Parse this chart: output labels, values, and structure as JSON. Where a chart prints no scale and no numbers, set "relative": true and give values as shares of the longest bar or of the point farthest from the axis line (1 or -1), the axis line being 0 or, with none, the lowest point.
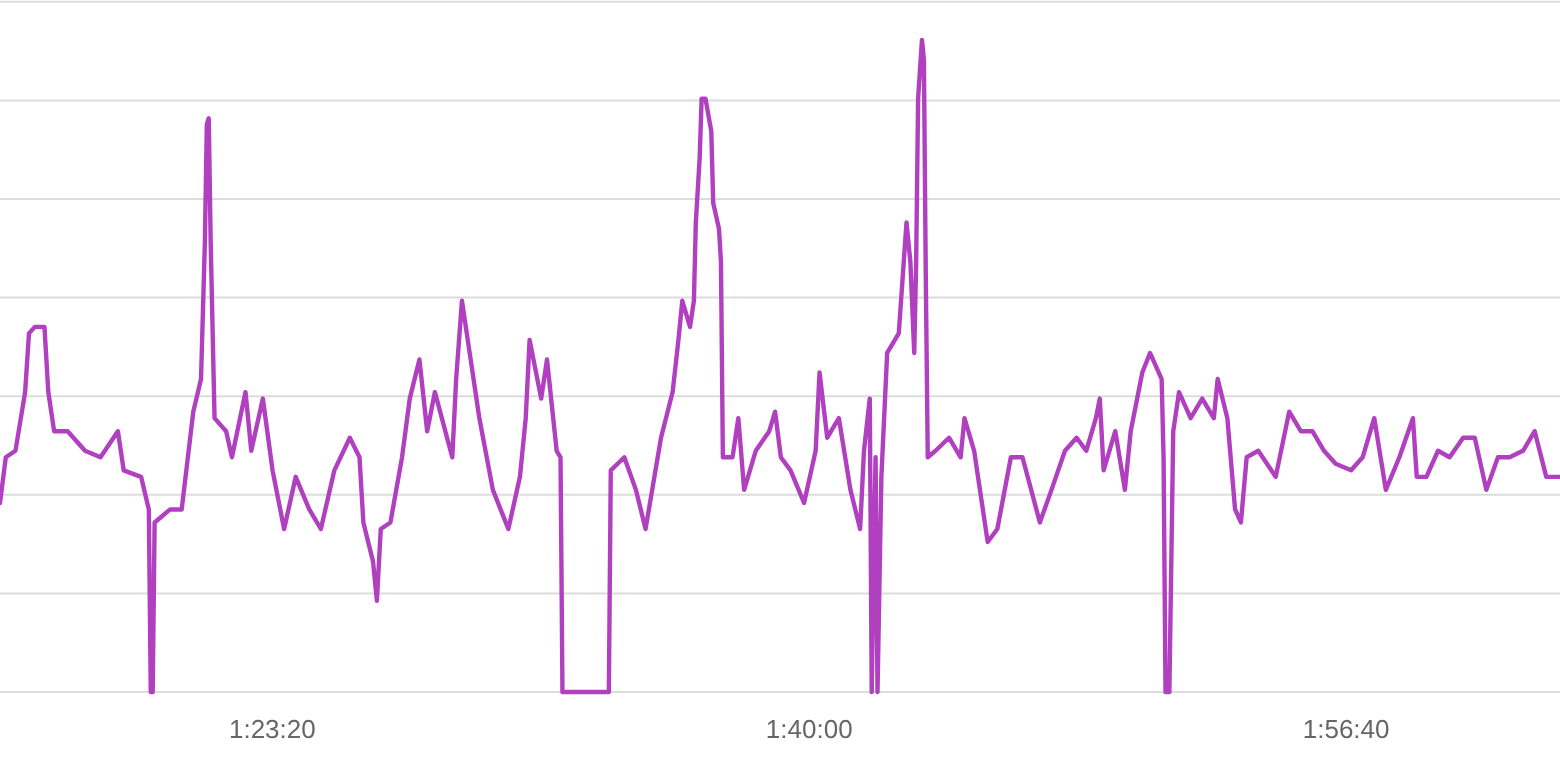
{
  "chart_data": {
    "type": "line",
    "relative": true,
    "grid": "y",
    "tick_labels": "x",
    "xlim": [
      1.248,
      2.0551
    ],
    "xticks": [
      {
        "value": 1.388889,
        "label": "1:23:20"
      },
      {
        "value": 1.666667,
        "label": "1:40:00"
      },
      {
        "value": 1.944444,
        "label": "1:56:40"
      }
    ],
    "series": [
      {
        "color": "#b040c0",
        "x": [
          1.248,
          1.251,
          1.256,
          1.261,
          1.263,
          1.266,
          1.271,
          1.273,
          1.276,
          1.283,
          1.292,
          1.3,
          1.309,
          1.312,
          1.321,
          1.325,
          1.326,
          1.327,
          1.328,
          1.336,
          1.342,
          1.348,
          1.352,
          1.354,
          1.355,
          1.356,
          1.357,
          1.359,
          1.365,
          1.368,
          1.375,
          1.378,
          1.384,
          1.389,
          1.395,
          1.401,
          1.408,
          1.414,
          1.421,
          1.429,
          1.434,
          1.436,
          1.441,
          1.443,
          1.445,
          1.45,
          1.456,
          1.46,
          1.465,
          1.469,
          1.473,
          1.482,
          1.484,
          1.487,
          1.491,
          1.496,
          1.503,
          1.511,
          1.517,
          1.52,
          1.522,
          1.528,
          1.531,
          1.536,
          1.538,
          1.539,
          1.563,
          1.564,
          1.571,
          1.577,
          1.582,
          1.59,
          1.596,
          1.599,
          1.601,
          1.605,
          1.607,
          1.608,
          1.61,
          1.611,
          1.613,
          1.616,
          1.617,
          1.62,
          1.621,
          1.622,
          1.627,
          1.63,
          1.633,
          1.639,
          1.646,
          1.649,
          1.652,
          1.657,
          1.664,
          1.67,
          1.672,
          1.676,
          1.682,
          1.688,
          1.693,
          1.695,
          1.698,
          1.699,
          1.7,
          1.701,
          1.702,
          1.704,
          1.707,
          1.713,
          1.717,
          1.719,
          1.721,
          1.722,
          1.723,
          1.725,
          1.726,
          1.727,
          1.728,
          1.732,
          1.739,
          1.745,
          1.747,
          1.752,
          1.759,
          1.764,
          1.771,
          1.777,
          1.786,
          1.792,
          1.799,
          1.805,
          1.81,
          1.815,
          1.817,
          1.819,
          1.825,
          1.83,
          1.833,
          1.839,
          1.843,
          1.849,
          1.85,
          1.851,
          1.853,
          1.855,
          1.858,
          1.864,
          1.87,
          1.876,
          1.878,
          1.883,
          1.887,
          1.89,
          1.893,
          1.899,
          1.908,
          1.915,
          1.921,
          1.927,
          1.933,
          1.939,
          1.947,
          1.953,
          1.959,
          1.965,
          1.972,
          1.979,
          1.981,
          1.986,
          1.992,
          1.998,
          2.005,
          2.011,
          2.017,
          2.023,
          2.029,
          2.036,
          2.042,
          2.048,
          2.055
        ],
        "values": [
          0.29,
          0.36,
          0.37,
          0.46,
          0.55,
          0.56,
          0.56,
          0.46,
          0.4,
          0.4,
          0.37,
          0.36,
          0.4,
          0.34,
          0.33,
          0.28,
          0,
          0,
          0.26,
          0.28,
          0.28,
          0.43,
          0.48,
          0.69,
          0.87,
          0.88,
          0.69,
          0.42,
          0.4,
          0.36,
          0.46,
          0.37,
          0.45,
          0.34,
          0.25,
          0.33,
          0.28,
          0.25,
          0.34,
          0.39,
          0.36,
          0.26,
          0.2,
          0.14,
          0.25,
          0.26,
          0.36,
          0.45,
          0.51,
          0.4,
          0.46,
          0.36,
          0.48,
          0.6,
          0.52,
          0.42,
          0.31,
          0.25,
          0.33,
          0.42,
          0.54,
          0.45,
          0.51,
          0.37,
          0.36,
          0,
          0,
          0.34,
          0.36,
          0.31,
          0.25,
          0.39,
          0.46,
          0.54,
          0.6,
          0.56,
          0.6,
          0.72,
          0.82,
          0.91,
          0.91,
          0.86,
          0.75,
          0.71,
          0.66,
          0.36,
          0.36,
          0.42,
          0.31,
          0.37,
          0.4,
          0.43,
          0.36,
          0.34,
          0.29,
          0.37,
          0.49,
          0.39,
          0.42,
          0.31,
          0.25,
          0.37,
          0.45,
          0,
          0.2,
          0.36,
          0,
          0.33,
          0.52,
          0.55,
          0.72,
          0.66,
          0.52,
          0.66,
          0.91,
          1.0,
          0.97,
          0.63,
          0.36,
          0.37,
          0.39,
          0.36,
          0.42,
          0.37,
          0.23,
          0.25,
          0.36,
          0.36,
          0.26,
          0.31,
          0.37,
          0.39,
          0.37,
          0.42,
          0.45,
          0.34,
          0.4,
          0.31,
          0.4,
          0.49,
          0.52,
          0.48,
          0.36,
          0,
          0,
          0.4,
          0.46,
          0.42,
          0.45,
          0.42,
          0.48,
          0.42,
          0.28,
          0.26,
          0.36,
          0.37,
          0.33,
          0.43,
          0.4,
          0.4,
          0.37,
          0.35,
          0.34,
          0.36,
          0.42,
          0.31,
          0.36,
          0.42,
          0.33,
          0.33,
          0.37,
          0.36,
          0.39,
          0.39,
          0.31,
          0.36,
          0.36,
          0.37,
          0.4,
          0.33,
          0.33
        ]
      }
    ]
  }
}
